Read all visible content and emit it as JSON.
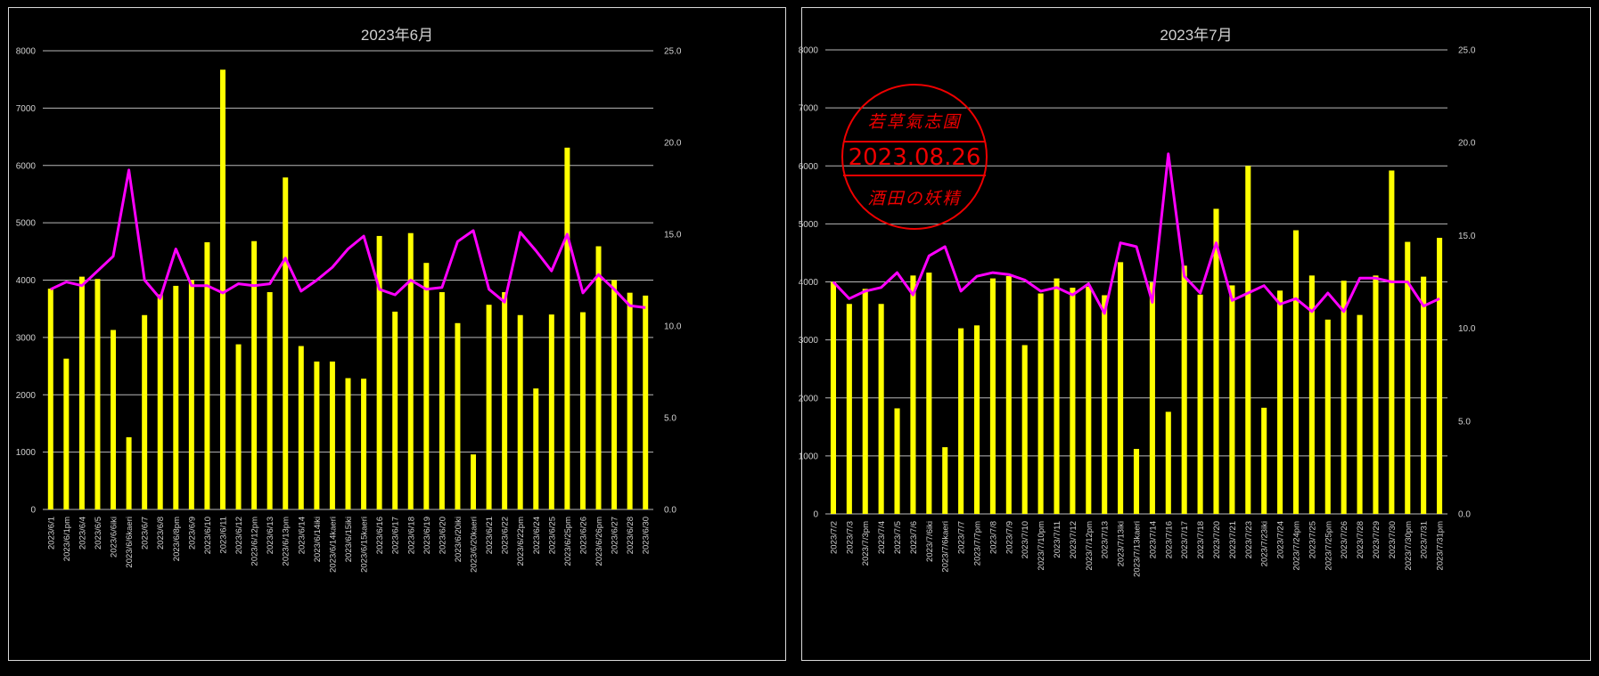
{
  "colors": {
    "bar": "#ffff00",
    "line": "#ff00ff",
    "grid": "#b8b8b8",
    "text": "#d0d0d0",
    "background": "#000000"
  },
  "stamp": {
    "top_text": "若草氣志園",
    "date": "2023.08.26",
    "bottom_text": "酒田の妖精"
  },
  "chart_data": [
    {
      "type": "bar",
      "title": "2023年6月",
      "ylim": [
        0,
        8000
      ],
      "y2lim": [
        0,
        25
      ],
      "yticks": [
        "0",
        "1000",
        "2000",
        "3000",
        "4000",
        "5000",
        "6000",
        "7000",
        "8000"
      ],
      "y2ticks": [
        "0.0",
        "5.0",
        "10.0",
        "15.0",
        "20.0",
        "25.0"
      ],
      "grid": true,
      "categories": [
        "2023/6/1",
        "2023/6/1pm",
        "2023/6/4",
        "2023/6/5",
        "2023/6/6iki",
        "2023/6/6kaeri",
        "2023/6/7",
        "2023/6/8",
        "2023/6/8pm",
        "2023/6/9",
        "2023/6/10",
        "2023/6/11",
        "2023/6/12",
        "2023/6/12pm",
        "2023/6/13",
        "2023/6/13pm",
        "2023/6/14",
        "2023/6/14iki",
        "2023/6/14kaeri",
        "2023/6/15iki",
        "2023/6/15kaeri",
        "2023/6/16",
        "2023/6/17",
        "2023/6/18",
        "2023/6/19",
        "2023/6/20",
        "2023/6/20iki",
        "2023/6/20kaeri",
        "2023/6/21",
        "2023/6/22",
        "2023/6/22pm",
        "2023/6/24",
        "2023/6/25",
        "2023/6/25pm",
        "2023/6/26",
        "2023/6/26pm",
        "2023/6/27",
        "2023/6/28",
        "2023/6/30"
      ],
      "series": [
        {
          "values": [
            3850,
            2630,
            4060,
            4020,
            3130,
            1260,
            3390,
            3750,
            3900,
            4000,
            4660,
            7670,
            2880,
            4680,
            3790,
            5790,
            2850,
            2580,
            2580,
            2290,
            2280,
            4770,
            3450,
            4820,
            4300,
            3790,
            3250,
            960,
            3570,
            3790,
            3390,
            2110,
            3400,
            6310,
            3440,
            4590,
            4000,
            3780,
            3730
          ]
        },
        {
          "values": [
            12.0,
            12.4,
            12.2,
            13.0,
            13.8,
            18.5,
            12.5,
            11.5,
            14.2,
            12.2,
            12.2,
            11.8,
            12.3,
            12.2,
            12.3,
            13.7,
            11.9,
            12.5,
            13.2,
            14.2,
            14.9,
            12.0,
            11.7,
            12.5,
            12.0,
            12.1,
            14.6,
            15.2,
            12.0,
            11.3,
            15.1,
            14.1,
            13.0,
            15.0,
            11.8,
            12.8,
            12.0,
            11.1,
            11.0
          ]
        }
      ]
    },
    {
      "type": "bar",
      "title": "2023年7月",
      "ylim": [
        0,
        8000
      ],
      "y2lim": [
        0,
        25
      ],
      "yticks": [
        "0",
        "1000",
        "2000",
        "3000",
        "4000",
        "5000",
        "6000",
        "7000",
        "8000"
      ],
      "y2ticks": [
        "0.0",
        "5.0",
        "10.0",
        "15.0",
        "20.0",
        "25.0"
      ],
      "grid": true,
      "categories": [
        "2023/7/2",
        "2023/7/3",
        "2023/7/3pm",
        "2023/7/4",
        "2023/7/5",
        "2023/7/6",
        "2023/7/6iki",
        "2023/7/6kaeri",
        "2023/7/7",
        "2023/7/7pm",
        "2023/7/8",
        "2023/7/9",
        "2023/7/10",
        "2023/7/10pm",
        "2023/7/11",
        "2023/7/12",
        "2023/7/12pm",
        "2023/7/13",
        "2023/7/13iki",
        "2023/7/13kaeri",
        "2023/7/14",
        "2023/7/16",
        "2023/7/17",
        "2023/7/18",
        "2023/7/20",
        "2023/7/21",
        "2023/7/23",
        "2023/7/23iki",
        "2023/7/24",
        "2023/7/24pm",
        "2023/7/25",
        "2023/7/25pm",
        "2023/7/26",
        "2023/7/28",
        "2023/7/29",
        "2023/7/30",
        "2023/7/30pm",
        "2023/7/31",
        "2023/7/31pm"
      ],
      "series": [
        {
          "values": [
            4000,
            3620,
            3880,
            3620,
            1820,
            4110,
            4160,
            1150,
            3200,
            3250,
            4060,
            4100,
            2910,
            3800,
            4060,
            3900,
            3920,
            3770,
            4340,
            1120,
            3990,
            1760,
            4280,
            3780,
            5260,
            3940,
            6000,
            1830,
            3850,
            4890,
            4110,
            3350,
            4020,
            3430,
            4110,
            5920,
            4690,
            4090,
            4760
          ]
        },
        {
          "values": [
            12.5,
            11.6,
            12.0,
            12.2,
            13.0,
            11.8,
            13.9,
            14.4,
            12.0,
            12.8,
            13.0,
            12.9,
            12.6,
            12.0,
            12.2,
            11.8,
            12.4,
            10.8,
            14.6,
            14.4,
            11.4,
            19.4,
            12.8,
            11.9,
            14.6,
            11.5,
            11.9,
            12.3,
            11.3,
            11.6,
            10.9,
            11.9,
            10.9,
            12.7,
            12.7,
            12.5,
            12.5,
            11.2,
            11.6
          ]
        }
      ]
    }
  ]
}
